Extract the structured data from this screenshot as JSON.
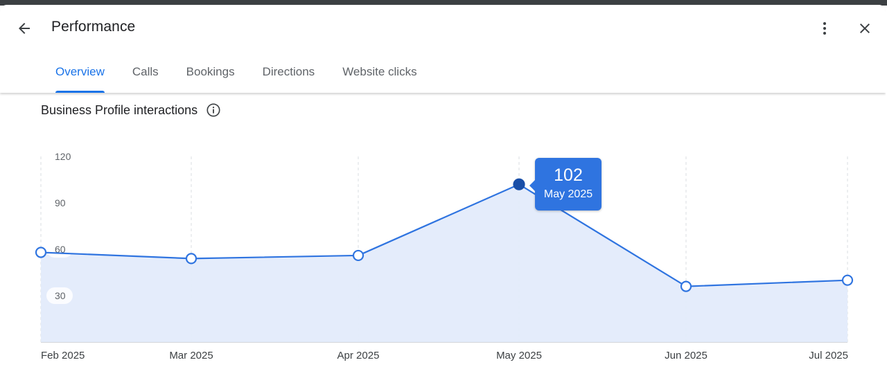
{
  "header": {
    "title": "Performance",
    "back_icon": "arrow-back-icon",
    "more_icon": "more-vert-icon",
    "close_icon": "close-icon"
  },
  "tabs": [
    {
      "label": "Overview",
      "active": true
    },
    {
      "label": "Calls",
      "active": false
    },
    {
      "label": "Bookings",
      "active": false
    },
    {
      "label": "Directions",
      "active": false
    },
    {
      "label": "Website clicks",
      "active": false
    }
  ],
  "section": {
    "title": "Business Profile interactions",
    "info_icon": "info-icon"
  },
  "colors": {
    "accent": "#1a73e8",
    "line": "#2f74e0",
    "area_fill": "#e3ebfb",
    "active_point": "#1a4fa8",
    "tooltip_bg": "#2f74e0"
  },
  "tooltip": {
    "value": "102",
    "label": "May 2025"
  },
  "chart_data": {
    "type": "area",
    "categories": [
      "Feb 2025",
      "Mar 2025",
      "Apr 2025",
      "May 2025",
      "Jun 2025",
      "Jul 2025"
    ],
    "values": [
      58,
      54,
      56,
      102,
      36,
      40
    ],
    "yticks": [
      "120",
      "90",
      "60",
      "30"
    ],
    "ylim": [
      0,
      120
    ],
    "grid": "vertical-dashed",
    "highlighted_index": 3
  }
}
